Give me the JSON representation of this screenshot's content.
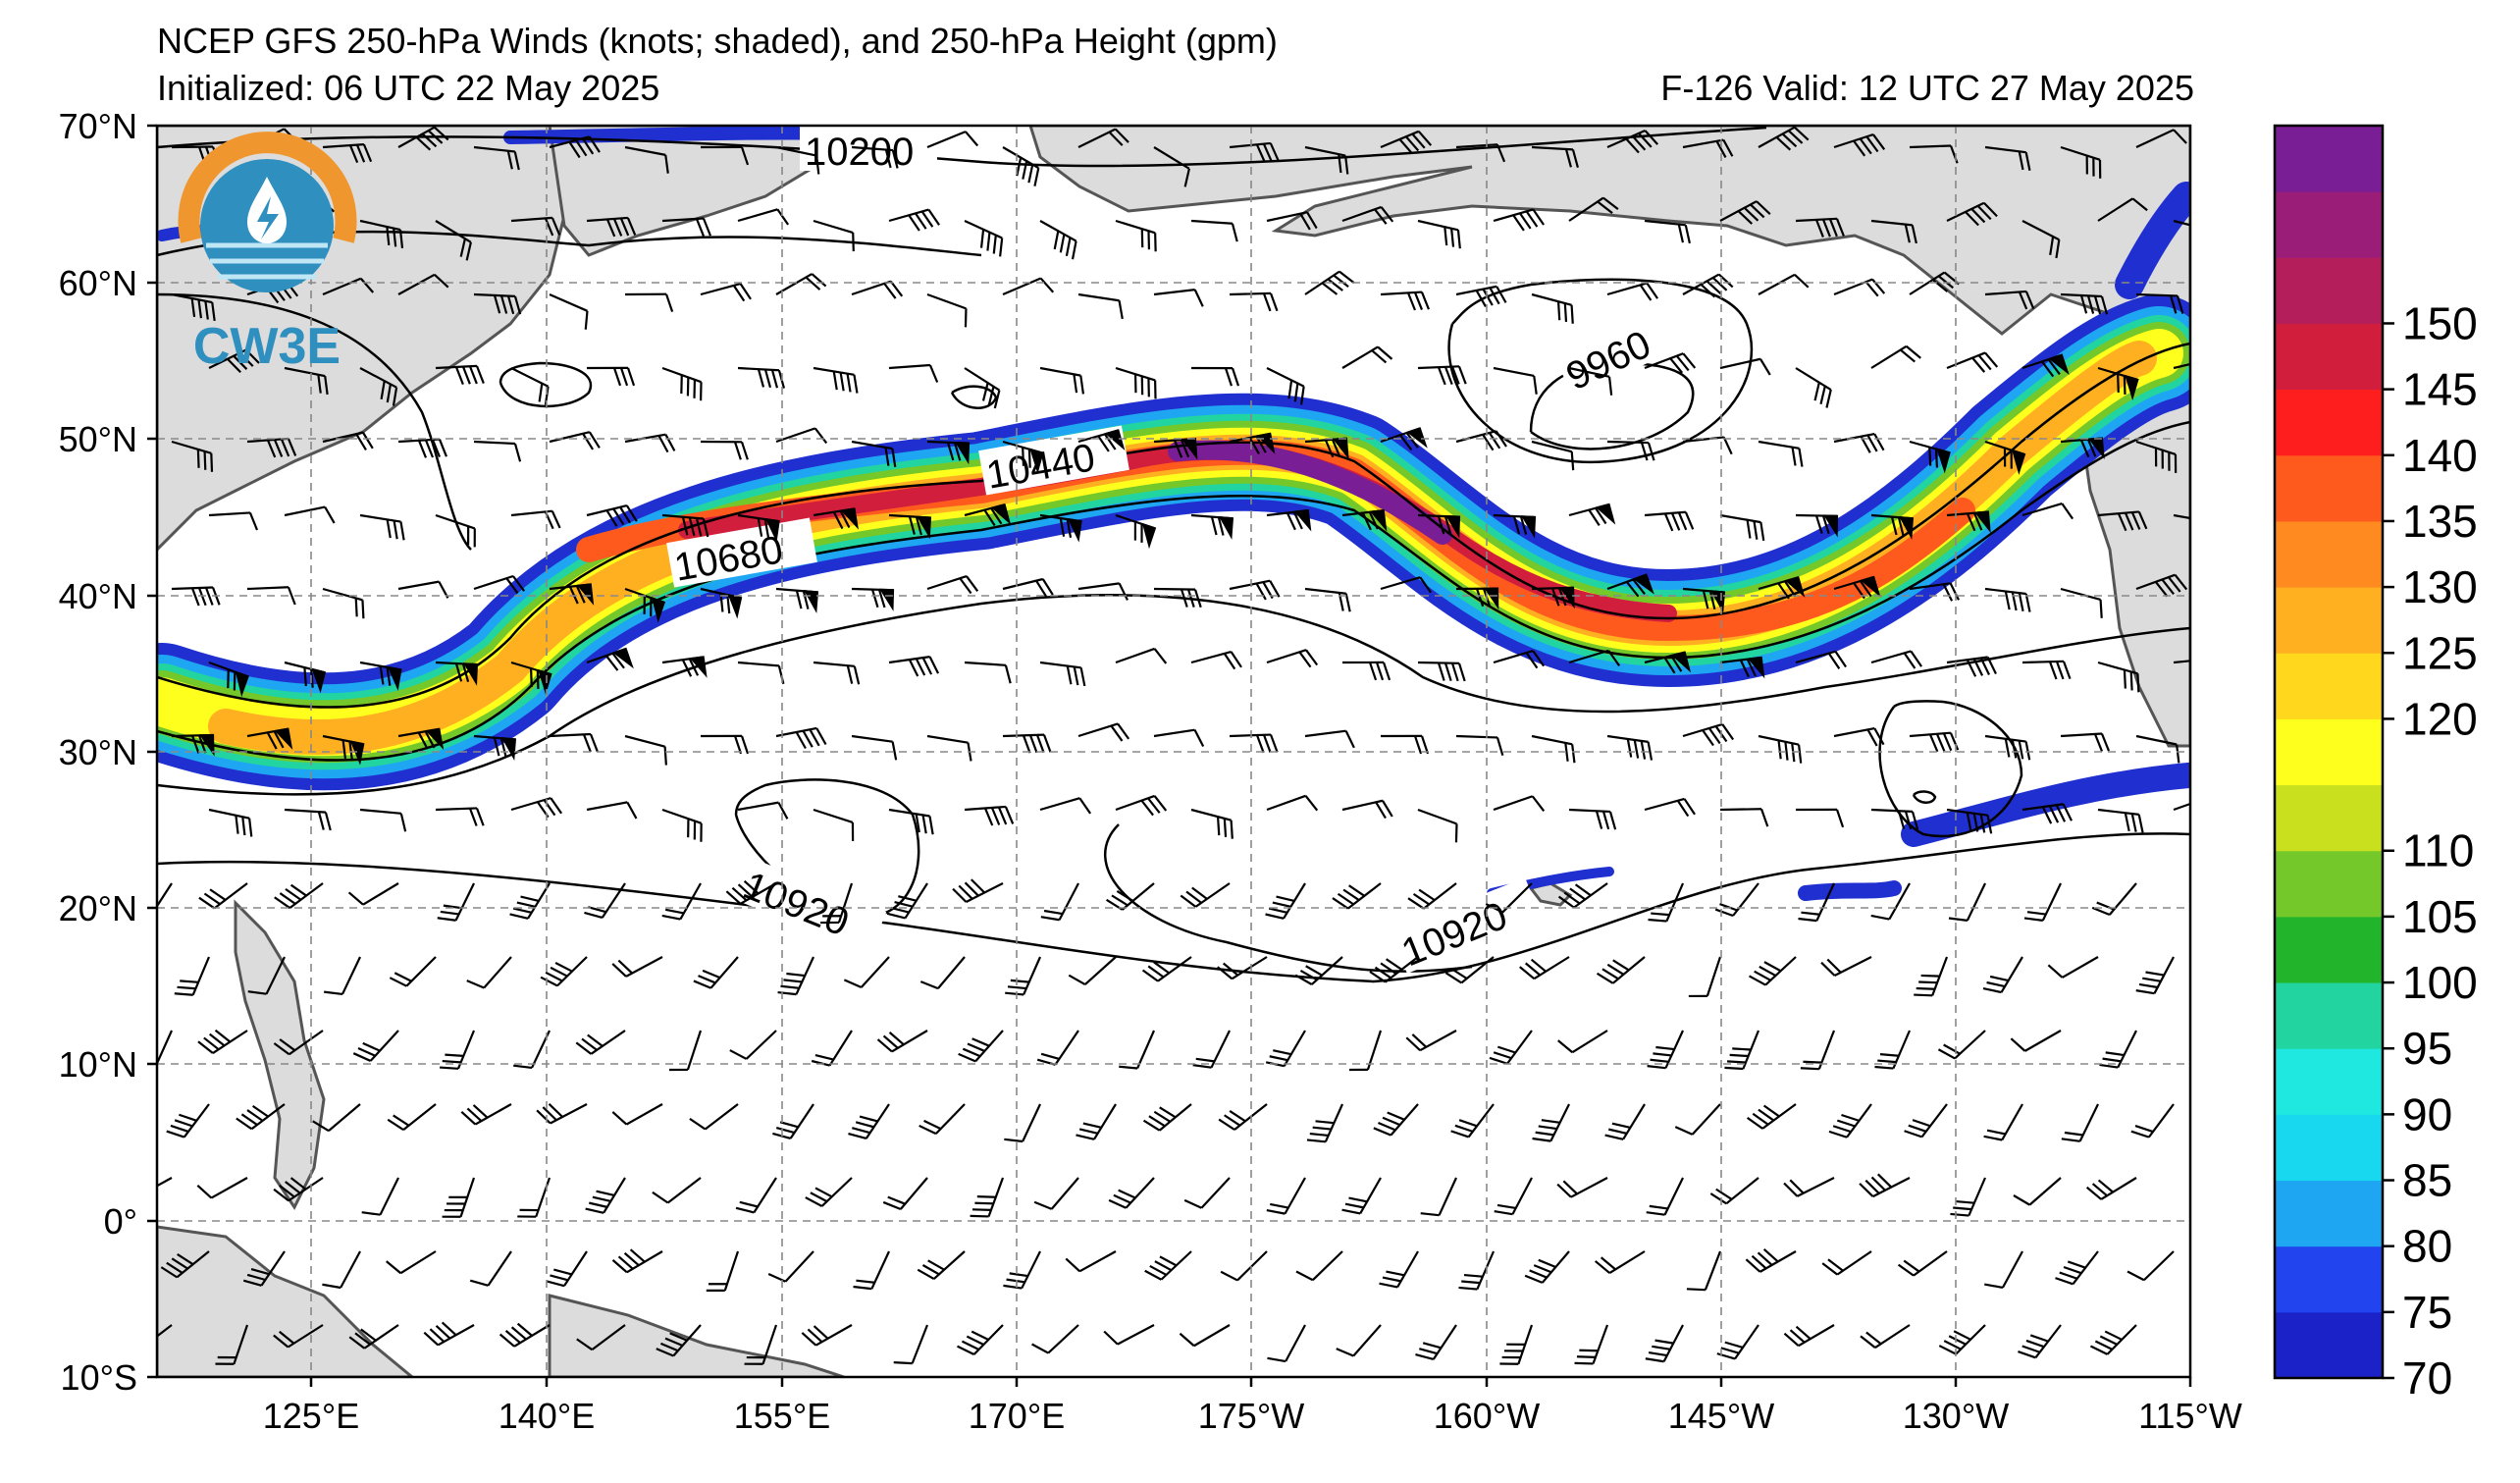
{
  "header": {
    "title": "NCEP GFS 250-hPa Winds (knots; shaded), and 250-hPa Height (gpm)",
    "initialized": "Initialized: 06 UTC 22 May 2025",
    "valid": "F-126  Valid: 12 UTC 27 May 2025"
  },
  "logo": {
    "text": "CW3E",
    "colors": {
      "ring": "#f0962e",
      "body": "#2f8fbf"
    }
  },
  "map": {
    "lat_labels": [
      "70°N",
      "60°N",
      "50°N",
      "40°N",
      "30°N",
      "20°N",
      "10°N",
      "0°",
      "10°S"
    ],
    "lon_labels": [
      "125°E",
      "140°E",
      "155°E",
      "170°E",
      "175°W",
      "160°W",
      "145°W",
      "130°W",
      "115°W"
    ],
    "contour_labels": [
      "10200",
      "10440",
      "10680",
      "9960",
      "10920",
      "10920"
    ],
    "land_color": "#dcdcdc",
    "grid": true
  },
  "colorbar": {
    "labels": [
      "70",
      "75",
      "80",
      "85",
      "90",
      "95",
      "100",
      "105",
      "110",
      "120",
      "125",
      "130",
      "135",
      "140",
      "145",
      "150"
    ],
    "colors": [
      "#1a22c8",
      "#2244ee",
      "#1fa6f2",
      "#18d8f0",
      "#1ee8e0",
      "#22d4a0",
      "#22b42a",
      "#74c82a",
      "#c8e01e",
      "#ffff1e",
      "#ffd81e",
      "#ffb020",
      "#ff8a20",
      "#ff5a1e",
      "#ff1e1e",
      "#d01e3c",
      "#b41e5a",
      "#9a1e78",
      "#7a1e96"
    ]
  }
}
